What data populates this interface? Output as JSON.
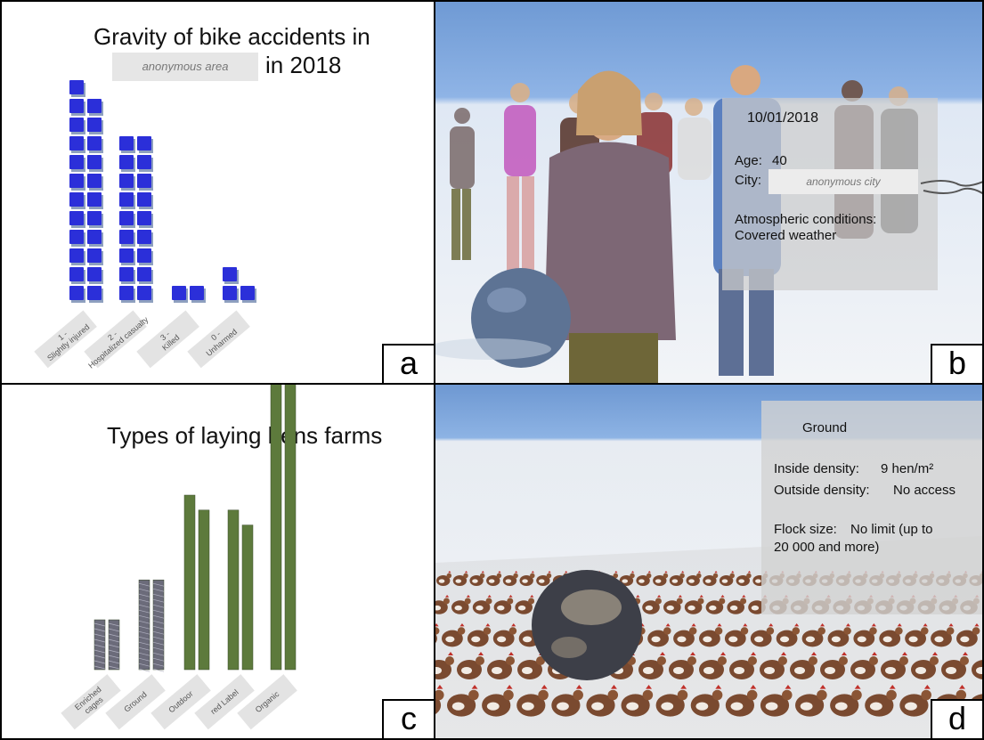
{
  "panel_a": {
    "label": "a",
    "title_line1": "Gravity of bike accidents in",
    "area_placeholder": "anonymous area",
    "title_year": "in 2018",
    "categories": [
      "1 - Slightly injured",
      "2 - Hospitalized casualty",
      "3 - Killed",
      "0 - Unharmed"
    ],
    "cube_stacks": [
      [
        12,
        11
      ],
      [
        9,
        9
      ],
      [
        1,
        1
      ],
      [
        2,
        1
      ]
    ],
    "cube_color": "#2b2fd9"
  },
  "panel_b": {
    "label": "b",
    "date": "10/01/2018",
    "age_label": "Age:",
    "age_value": "40",
    "city_label": "City:",
    "city_placeholder": "anonymous city",
    "conditions_label": "Atmospheric conditions:",
    "conditions_value": "Covered weather"
  },
  "panel_c": {
    "label": "c",
    "title": "Types of laying hens farms",
    "categories": [
      "Enriched cages",
      "Ground",
      "Outdoor",
      "red Label",
      "Organic"
    ],
    "bar_pairs": [
      [
        1,
        1
      ],
      [
        1.8,
        1.8
      ],
      [
        3.5,
        3.2
      ],
      [
        3.2,
        2.9
      ],
      [
        5.9,
        5.8
      ]
    ],
    "bar_color": "#5d7a3c",
    "cage_color": "#6b6b7a"
  },
  "panel_d": {
    "label": "d",
    "header": "Ground",
    "inside_label": "Inside density:",
    "inside_value": "9 hen/m²",
    "outside_label": "Outside density:",
    "outside_value": "No access",
    "flock_label": "Flock size:",
    "flock_value_line1": "No limit (up to",
    "flock_value_line2": "20 000 and more)"
  }
}
